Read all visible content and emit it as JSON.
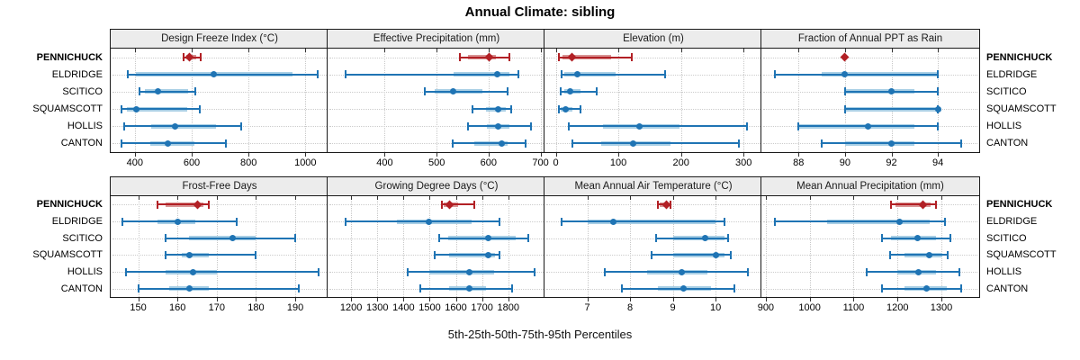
{
  "title": "Annual Climate: sibling",
  "xlabel": "5th-25th-50th-75th-95th Percentiles",
  "sites": [
    "PENNICHUCK",
    "ELDRIDGE",
    "SCITICO",
    "SQUAMSCOTT",
    "HOLLIS",
    "CANTON"
  ],
  "highlight_site": "PENNICHUCK",
  "marker_shapes": {
    "highlight": "diamond",
    "default": "circle"
  },
  "colors": {
    "blue": "#1f74b4",
    "blue_light": "#a9cfe5",
    "red": "#b22025",
    "red_light": "#d89494",
    "strip_bg": "#ececec",
    "grid": "#c8c8c8",
    "border": "#1a1a1a"
  },
  "chart_data": {
    "type": "dot-interval (trellis of percentile range plots)",
    "percentiles": [
      "5th",
      "25th",
      "50th",
      "75th",
      "95th"
    ],
    "legend_position": "none",
    "grid": "dotted",
    "panels": [
      {
        "title": "Design Freeze Index (°C)",
        "row": 0,
        "col": 0,
        "ticks": [
          400,
          600,
          800,
          1000
        ],
        "xlim": [
          315,
          1075
        ],
        "series": [
          {
            "site": "PENNICHUCK",
            "values": [
              570,
              580,
              592,
              616,
              632
            ]
          },
          {
            "site": "ELDRIDGE",
            "values": [
              375,
              405,
              676,
              955,
              1043
            ]
          },
          {
            "site": "SCITICO",
            "values": [
              416,
              436,
              481,
              587,
              613
            ]
          },
          {
            "site": "SQUAMSCOTT",
            "values": [
              354,
              371,
              405,
              584,
              630
            ]
          },
          {
            "site": "HOLLIS",
            "values": [
              364,
              459,
              540,
              686,
              773
            ]
          },
          {
            "site": "CANTON",
            "values": [
              354,
              454,
              517,
              609,
              719
            ]
          }
        ]
      },
      {
        "title": "Effective Precipitation (mm)",
        "row": 0,
        "col": 1,
        "ticks": [
          400,
          500,
          600,
          700
        ],
        "xlim": [
          290,
          706
        ],
        "series": [
          {
            "site": "PENNICHUCK",
            "values": [
              545,
              560,
              601,
              615,
              640
            ]
          },
          {
            "site": "ELDRIDGE",
            "values": [
              325,
              532,
              617,
              641,
              657
            ]
          },
          {
            "site": "SCITICO",
            "values": [
              477,
              497,
              531,
              588,
              636
            ]
          },
          {
            "site": "SQUAMSCOTT",
            "values": [
              569,
              595,
              619,
              634,
              644
            ]
          },
          {
            "site": "HOLLIS",
            "values": [
              560,
              596,
              619,
              640,
              681
            ]
          },
          {
            "site": "CANTON",
            "values": [
              531,
              573,
              625,
              636,
              672
            ]
          }
        ]
      },
      {
        "title": "Elevation (m)",
        "row": 0,
        "col": 2,
        "ticks": [
          0,
          100,
          200,
          300
        ],
        "xlim": [
          -18,
          327
        ],
        "series": [
          {
            "site": "PENNICHUCK",
            "values": [
              5,
              11,
              26,
              88,
              122
            ]
          },
          {
            "site": "ELDRIDGE",
            "values": [
              9,
              14,
              35,
              95,
              174
            ]
          },
          {
            "site": "SCITICO",
            "values": [
              8,
              13,
              23,
              39,
              66
            ]
          },
          {
            "site": "SQUAMSCOTT",
            "values": [
              5,
              8,
              16,
              27,
              39
            ]
          },
          {
            "site": "HOLLIS",
            "values": [
              21,
              75,
              134,
              197,
              306
            ]
          },
          {
            "site": "CANTON",
            "values": [
              26,
              73,
              123,
              183,
              293
            ]
          }
        ]
      },
      {
        "title": "Fraction of Annual PPT as Rain",
        "row": 0,
        "col": 3,
        "ticks": [
          88,
          90,
          92,
          94
        ],
        "xlim": [
          86.4,
          95.7
        ],
        "series": [
          {
            "site": "PENNICHUCK",
            "values": [
              90,
              90,
              90,
              90,
              90
            ]
          },
          {
            "site": "ELDRIDGE",
            "values": [
              87,
              89,
              90,
              94,
              94
            ]
          },
          {
            "site": "SCITICO",
            "values": [
              90,
              90,
              92,
              93,
              94
            ]
          },
          {
            "site": "SQUAMSCOTT",
            "values": [
              90,
              90,
              94,
              94,
              94
            ]
          },
          {
            "site": "HOLLIS",
            "values": [
              88,
              88,
              91,
              93,
              94
            ]
          },
          {
            "site": "CANTON",
            "values": [
              89,
              90,
              92,
              93,
              95
            ]
          }
        ]
      },
      {
        "title": "Frost-Free Days",
        "row": 1,
        "col": 0,
        "ticks": [
          150,
          160,
          170,
          180,
          190
        ],
        "xlim": [
          143,
          198
        ],
        "series": [
          {
            "site": "PENNICHUCK",
            "values": [
              155,
              157,
              165,
              166.5,
              168
            ]
          },
          {
            "site": "ELDRIDGE",
            "values": [
              146,
              155,
              160,
              164.5,
              175
            ]
          },
          {
            "site": "SCITICO",
            "values": [
              157,
              163,
              174,
              180,
              190
            ]
          },
          {
            "site": "SQUAMSCOTT",
            "values": [
              157,
              161,
              163,
              168,
              180
            ]
          },
          {
            "site": "HOLLIS",
            "values": [
              147,
              157,
              164,
              170,
              196
            ]
          },
          {
            "site": "CANTON",
            "values": [
              150,
              158,
              163,
              168,
              191
            ]
          }
        ]
      },
      {
        "title": "Growing Degree Days (°C)",
        "row": 1,
        "col": 1,
        "ticks": [
          1200,
          1300,
          1400,
          1500,
          1600,
          1700,
          1800
        ],
        "xlim": [
          1110,
          1935
        ],
        "series": [
          {
            "site": "PENNICHUCK",
            "values": [
              1545,
              1552,
              1575,
              1610,
              1670
            ]
          },
          {
            "site": "ELDRIDGE",
            "values": [
              1180,
              1375,
              1497,
              1660,
              1765
            ]
          },
          {
            "site": "SCITICO",
            "values": [
              1535,
              1570,
              1725,
              1830,
              1875
            ]
          },
          {
            "site": "SQUAMSCOTT",
            "values": [
              1520,
              1575,
              1725,
              1750,
              1765
            ]
          },
          {
            "site": "HOLLIS",
            "values": [
              1415,
              1500,
              1650,
              1745,
              1900
            ]
          },
          {
            "site": "CANTON",
            "values": [
              1465,
              1575,
              1650,
              1715,
              1815
            ]
          }
        ]
      },
      {
        "title": "Mean Annual Air Temperature (°C)",
        "row": 1,
        "col": 2,
        "ticks": [
          7,
          8,
          9,
          10
        ],
        "xlim": [
          6.0,
          11.05
        ],
        "series": [
          {
            "site": "PENNICHUCK",
            "values": [
              8.65,
              8.7,
              8.85,
              8.9,
              8.95
            ]
          },
          {
            "site": "ELDRIDGE",
            "values": [
              6.4,
              7.0,
              7.6,
              10.0,
              10.2
            ]
          },
          {
            "site": "SCITICO",
            "values": [
              8.6,
              9.0,
              9.75,
              10.2,
              10.3
            ]
          },
          {
            "site": "SQUAMSCOTT",
            "values": [
              8.5,
              9.0,
              10.0,
              10.2,
              10.35
            ]
          },
          {
            "site": "HOLLIS",
            "values": [
              7.4,
              8.4,
              9.2,
              9.8,
              10.75
            ]
          },
          {
            "site": "CANTON",
            "values": [
              7.8,
              8.65,
              9.25,
              9.9,
              10.45
            ]
          }
        ]
      },
      {
        "title": "Mean Annual Precipitation (mm)",
        "row": 1,
        "col": 3,
        "ticks": [
          900,
          1000,
          1100,
          1200,
          1300
        ],
        "xlim": [
          890,
          1382
        ],
        "series": [
          {
            "site": "PENNICHUCK",
            "values": [
              1185,
              1195,
              1258,
              1275,
              1287
            ]
          },
          {
            "site": "ELDRIDGE",
            "values": [
              920,
              1040,
              1205,
              1273,
              1308
            ]
          },
          {
            "site": "SCITICO",
            "values": [
              1165,
              1185,
              1246,
              1287,
              1320
            ]
          },
          {
            "site": "SQUAMSCOTT",
            "values": [
              1183,
              1215,
              1273,
              1303,
              1315
            ]
          },
          {
            "site": "HOLLIS",
            "values": [
              1130,
              1200,
              1248,
              1288,
              1340
            ]
          },
          {
            "site": "CANTON",
            "values": [
              1165,
              1215,
              1267,
              1313,
              1345
            ]
          }
        ]
      }
    ]
  }
}
